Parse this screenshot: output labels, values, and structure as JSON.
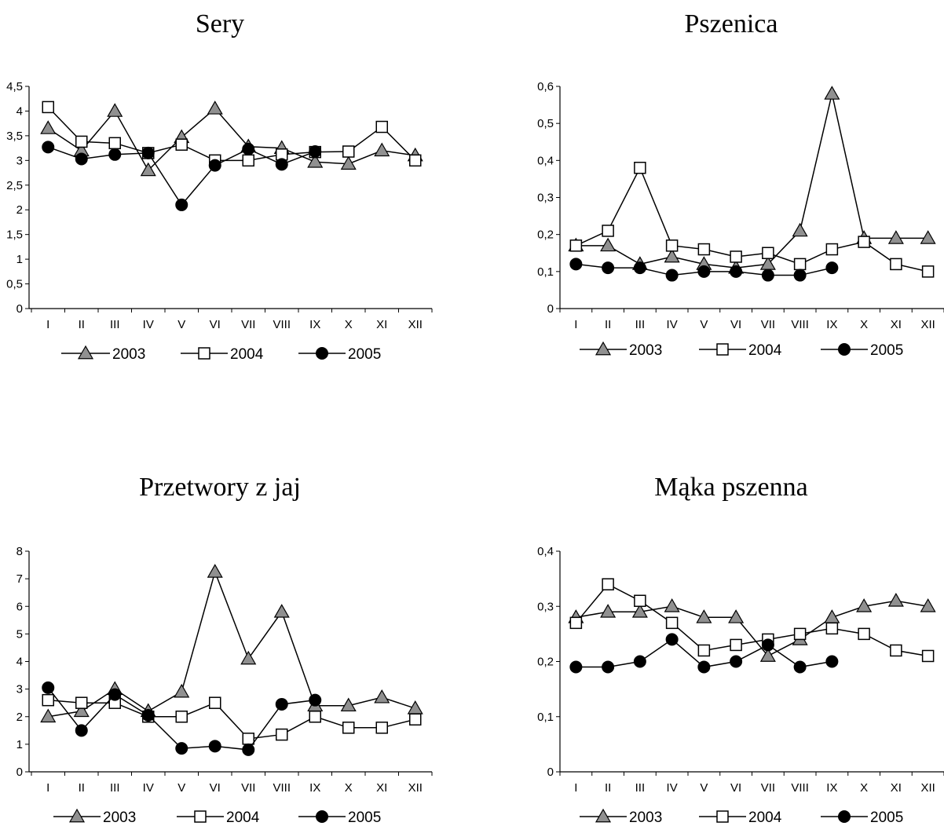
{
  "style": {
    "series_colors": {
      "triangle_fill": "#909090",
      "square_fill": "#ffffff",
      "circle_fill": "#000000",
      "line": "#000000"
    }
  },
  "chart_data": [
    {
      "type": "line",
      "title": "Sery",
      "categories": [
        "I",
        "II",
        "III",
        "IV",
        "V",
        "VI",
        "VII",
        "VIII",
        "IX",
        "X",
        "XI",
        "XII"
      ],
      "ylim": [
        0,
        4.5
      ],
      "yticks": [
        "0",
        "0,5",
        "1",
        "1,5",
        "2",
        "2,5",
        "3",
        "3,5",
        "4",
        "4,5"
      ],
      "ytick_values": [
        0,
        0.5,
        1,
        1.5,
        2,
        2.5,
        3,
        3.5,
        4,
        4.5
      ],
      "grid": false,
      "legend": "bottom",
      "series": [
        {
          "name": "2003",
          "marker": "triangle",
          "values": [
            3.65,
            3.2,
            4.0,
            2.8,
            3.47,
            4.05,
            3.28,
            3.25,
            2.97,
            2.93,
            3.2,
            3.1
          ]
        },
        {
          "name": "2004",
          "marker": "square",
          "values": [
            4.08,
            3.38,
            3.35,
            3.15,
            3.32,
            3.0,
            3.0,
            3.12,
            3.17,
            3.18,
            3.68,
            3.0
          ]
        },
        {
          "name": "2005",
          "marker": "circle",
          "values": [
            3.27,
            3.03,
            3.12,
            3.15,
            2.1,
            2.9,
            3.23,
            2.92,
            3.18,
            null,
            null,
            null
          ]
        }
      ]
    },
    {
      "type": "line",
      "title": "Pszenica",
      "categories": [
        "I",
        "II",
        "III",
        "IV",
        "V",
        "VI",
        "VII",
        "VIII",
        "IX",
        "X",
        "XI",
        "XII"
      ],
      "ylim": [
        0,
        0.6
      ],
      "yticks": [
        "0",
        "0,1",
        "0,2",
        "0,3",
        "0,4",
        "0,5",
        "0,6"
      ],
      "ytick_values": [
        0,
        0.1,
        0.2,
        0.3,
        0.4,
        0.5,
        0.6
      ],
      "grid": false,
      "legend": "bottom",
      "series": [
        {
          "name": "2003",
          "marker": "triangle",
          "values": [
            0.17,
            0.17,
            0.12,
            0.14,
            0.12,
            0.11,
            0.12,
            0.21,
            0.58,
            0.19,
            0.19,
            0.19
          ]
        },
        {
          "name": "2004",
          "marker": "square",
          "values": [
            0.17,
            0.21,
            0.38,
            0.17,
            0.16,
            0.14,
            0.15,
            0.12,
            0.16,
            0.18,
            0.12,
            0.1
          ]
        },
        {
          "name": "2005",
          "marker": "circle",
          "values": [
            0.12,
            0.11,
            0.11,
            0.09,
            0.1,
            0.1,
            0.09,
            0.09,
            0.11,
            null,
            null,
            null
          ]
        }
      ]
    },
    {
      "type": "line",
      "title": "Przetwory z jaj",
      "categories": [
        "I",
        "II",
        "III",
        "IV",
        "V",
        "VI",
        "VII",
        "VIII",
        "IX",
        "X",
        "XI",
        "XII"
      ],
      "ylim": [
        0,
        8
      ],
      "yticks": [
        "0",
        "1",
        "2",
        "3",
        "4",
        "5",
        "6",
        "7",
        "8"
      ],
      "ytick_values": [
        0,
        1,
        2,
        3,
        4,
        5,
        6,
        7,
        8
      ],
      "grid": false,
      "legend": "bottom",
      "series": [
        {
          "name": "2003",
          "marker": "triangle",
          "values": [
            2.0,
            2.2,
            3.0,
            2.2,
            2.9,
            7.25,
            4.1,
            5.8,
            2.4,
            2.4,
            2.7,
            2.3
          ]
        },
        {
          "name": "2004",
          "marker": "square",
          "values": [
            2.6,
            2.5,
            2.5,
            2.0,
            2.0,
            2.5,
            1.2,
            1.35,
            2.0,
            1.6,
            1.6,
            1.9
          ]
        },
        {
          "name": "2005",
          "marker": "circle",
          "values": [
            3.05,
            1.5,
            2.8,
            2.05,
            0.85,
            0.93,
            0.8,
            2.45,
            2.6,
            null,
            null,
            null
          ]
        }
      ]
    },
    {
      "type": "line",
      "title": "Mąka pszenna",
      "categories": [
        "I",
        "II",
        "III",
        "IV",
        "V",
        "VI",
        "VII",
        "VIII",
        "IX",
        "X",
        "XI",
        "XII"
      ],
      "ylim": [
        0,
        0.4
      ],
      "yticks": [
        "0",
        "0,1",
        "0,2",
        "0,3",
        "0,4"
      ],
      "ytick_values": [
        0,
        0.1,
        0.2,
        0.3,
        0.4
      ],
      "grid": false,
      "legend": "bottom",
      "series": [
        {
          "name": "2003",
          "marker": "triangle",
          "values": [
            0.28,
            0.29,
            0.29,
            0.3,
            0.28,
            0.28,
            0.21,
            0.24,
            0.28,
            0.3,
            0.31,
            0.3
          ]
        },
        {
          "name": "2004",
          "marker": "square",
          "values": [
            0.27,
            0.34,
            0.31,
            0.27,
            0.22,
            0.23,
            0.24,
            0.25,
            0.26,
            0.25,
            0.22,
            0.21
          ]
        },
        {
          "name": "2005",
          "marker": "circle",
          "values": [
            0.19,
            0.19,
            0.2,
            0.24,
            0.19,
            0.2,
            0.23,
            0.19,
            0.2,
            null,
            null,
            null
          ]
        }
      ]
    }
  ]
}
